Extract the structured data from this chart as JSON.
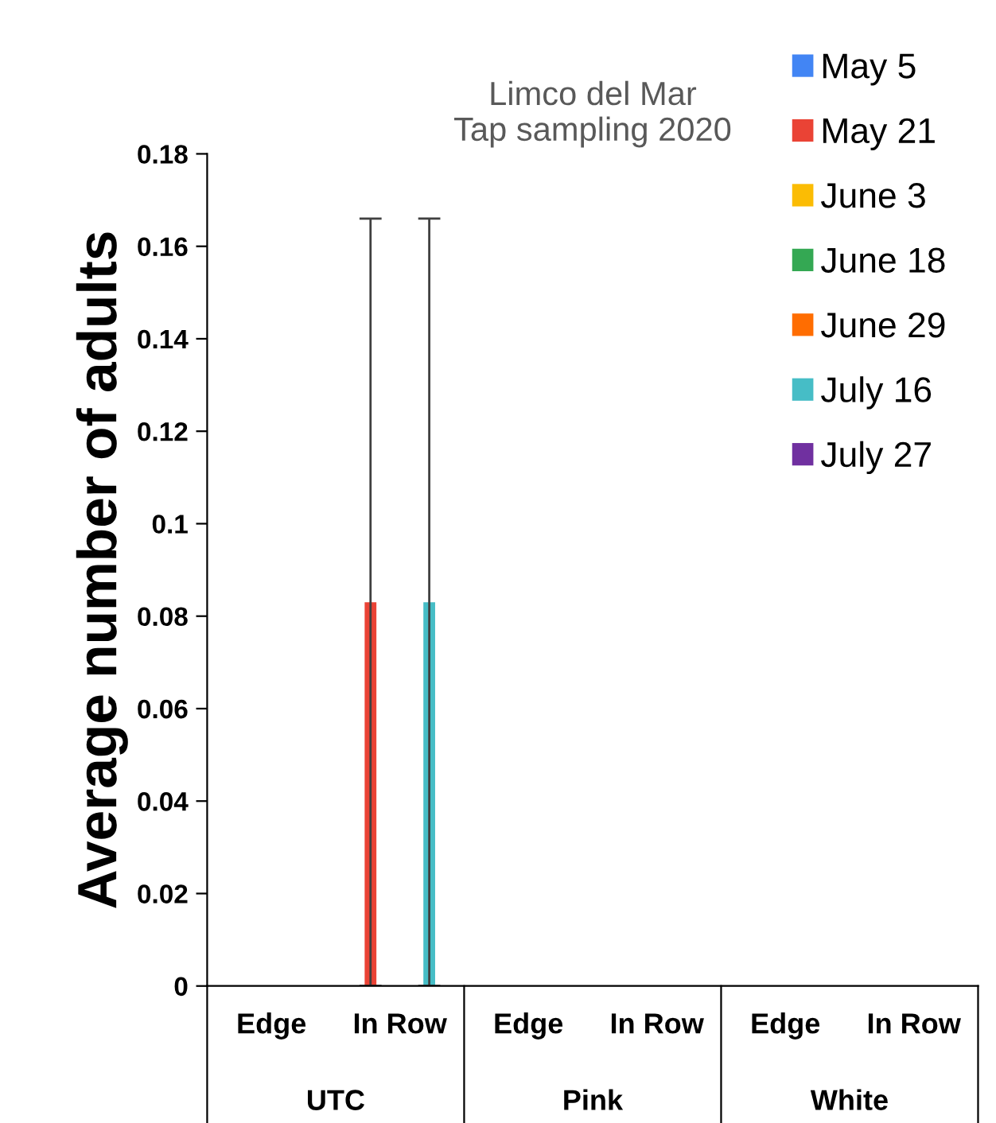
{
  "chart_data": {
    "type": "bar",
    "title": "Limco del Mar\nTap sampling 2020",
    "ylabel": "Average number of adults",
    "categories": [
      "Edge",
      "In Row",
      "Edge",
      "In Row",
      "Edge",
      "In Row"
    ],
    "annotations": [
      "UTC",
      "Pink",
      "White"
    ],
    "series": [
      {
        "name": "May 5",
        "color": "#4285f4",
        "values": [
          0,
          0,
          0,
          0,
          0,
          0
        ]
      },
      {
        "name": "May 21",
        "color": "#ea4335",
        "values": [
          0,
          0.083,
          0,
          0,
          0,
          0
        ],
        "errors": [
          null,
          0.083,
          null,
          null,
          null,
          null
        ]
      },
      {
        "name": "June 3",
        "color": "#fbbc04",
        "values": [
          0,
          0,
          0,
          0,
          0,
          0
        ]
      },
      {
        "name": "June 18",
        "color": "#34a853",
        "values": [
          0,
          0,
          0,
          0,
          0,
          0
        ]
      },
      {
        "name": "June 29",
        "color": "#ff6d01",
        "values": [
          0,
          0,
          0,
          0,
          0,
          0
        ]
      },
      {
        "name": "July 16",
        "color": "#46bdc6",
        "values": [
          0,
          0.083,
          0,
          0,
          0,
          0
        ],
        "errors": [
          null,
          0.083,
          null,
          null,
          null,
          null
        ]
      },
      {
        "name": "July 27",
        "color": "#7030a0",
        "values": [
          0,
          0,
          0,
          0,
          0,
          0
        ]
      }
    ],
    "ylim": [
      0,
      0.18
    ],
    "yticks": [
      {
        "value": 0,
        "label": "0"
      },
      0.02,
      0.04,
      0.06,
      0.08,
      {
        "value": 0.1,
        "label": "0.1"
      },
      0.12,
      0.14,
      0.16,
      0.18
    ],
    "grid": false,
    "legend": "top right"
  }
}
